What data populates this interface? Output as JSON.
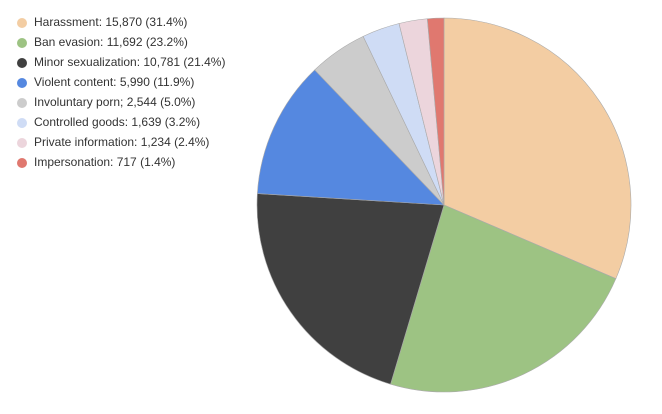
{
  "chart_data": {
    "type": "pie",
    "categories": [
      "Harassment: 15,870 (31.4%)",
      "Ban evasion: 11,692 (23.2%)",
      "Minor sexualization: 10,781 (21.4%)",
      "Violent content: 5,990 (11.9%)",
      "Involuntary porn; 2,544 (5.0%)",
      "Controlled goods: 1,639 (3.2%)",
      "Private information: 1,234 (2.4%)",
      "Impersonation: 717 (1.4%)"
    ],
    "values": [
      15870,
      11692,
      10781,
      5990,
      2544,
      1639,
      1234,
      717
    ],
    "colors": [
      "#f3cda3",
      "#9dc383",
      "#404040",
      "#5588e0",
      "#cccccc",
      "#cfdcf5",
      "#ecd5dc",
      "#e0786f"
    ],
    "legend": "upper left"
  }
}
